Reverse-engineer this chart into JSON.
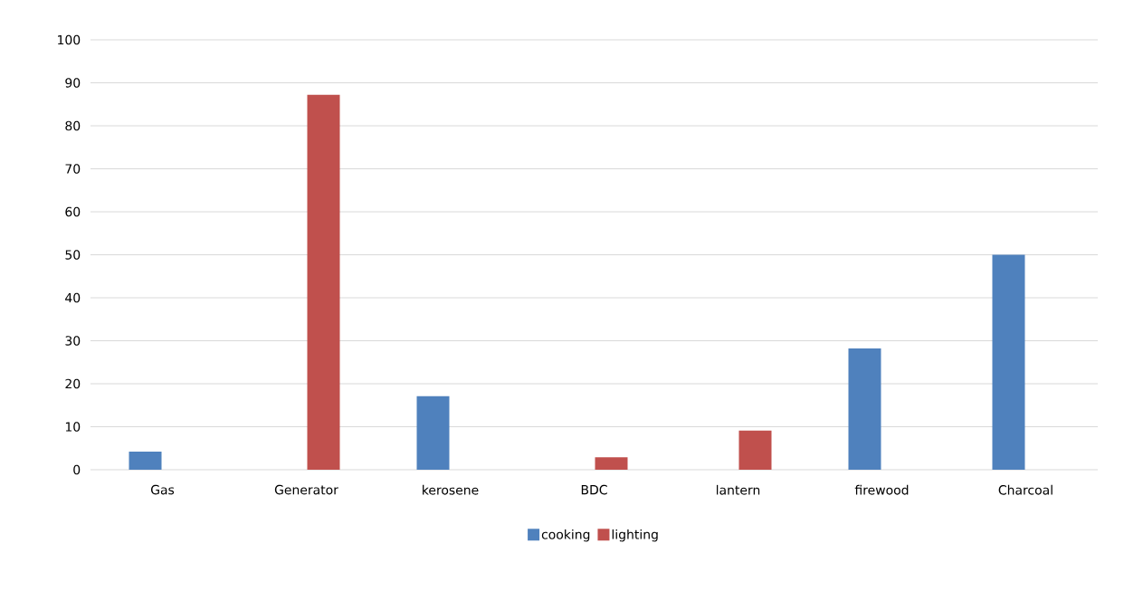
{
  "chart_data": {
    "type": "bar",
    "categories": [
      "Gas",
      "Generator",
      "kerosene",
      "BDC",
      "lantern",
      "firewood",
      "Charcoal"
    ],
    "series": [
      {
        "name": "cooking",
        "color": "#4f81bd",
        "values": [
          4.2,
          null,
          17.1,
          null,
          null,
          28.2,
          50
        ]
      },
      {
        "name": "lighting",
        "color": "#c0504d",
        "values": [
          null,
          87.2,
          null,
          2.9,
          9.1,
          null,
          null
        ]
      }
    ],
    "ylim": [
      0,
      100
    ],
    "yticks": [
      0,
      10,
      20,
      30,
      40,
      50,
      60,
      70,
      80,
      90,
      100
    ],
    "grid": "y",
    "legend": "bottom"
  }
}
